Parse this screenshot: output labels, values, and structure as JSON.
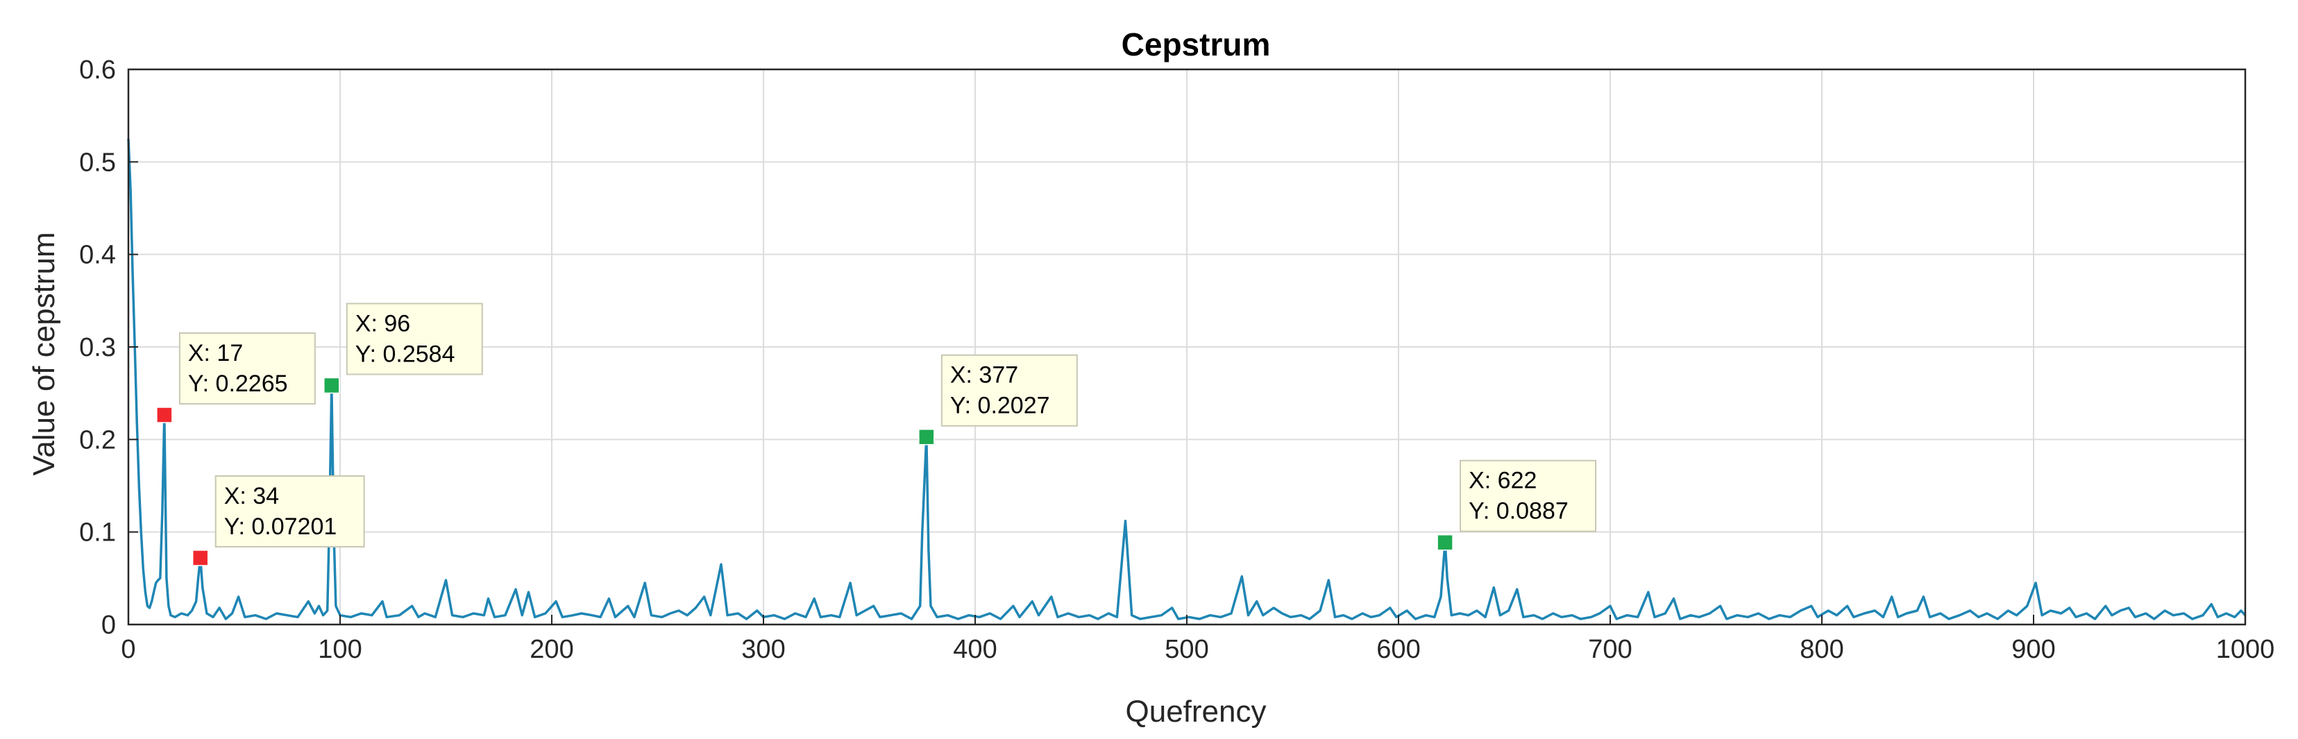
{
  "chart_data": {
    "type": "line",
    "title": "Cepstrum",
    "xlabel": "Quefrency",
    "ylabel": "Value of cepstrum",
    "xlim": [
      0,
      1000
    ],
    "ylim": [
      0,
      0.6
    ],
    "x_ticks": [
      0,
      100,
      200,
      300,
      400,
      500,
      600,
      700,
      800,
      900,
      1000
    ],
    "y_ticks": [
      0,
      0.1,
      0.2,
      0.3,
      0.4,
      0.5,
      0.6
    ],
    "grid": true,
    "colors": {
      "line": "#1f86b4",
      "marker_red": "#f0282d",
      "marker_green": "#1eaa50",
      "grid": "#dcdcdc",
      "axis": "#262626",
      "tip_bg": "#ffffe6",
      "tip_border": "#c8c8b4"
    },
    "series": [
      {
        "points": [
          [
            0,
            0.525
          ],
          [
            1,
            0.47
          ],
          [
            2,
            0.38
          ],
          [
            3,
            0.3
          ],
          [
            4,
            0.22
          ],
          [
            5,
            0.15
          ],
          [
            6,
            0.1
          ],
          [
            7,
            0.06
          ],
          [
            8,
            0.035
          ],
          [
            9,
            0.02
          ],
          [
            10,
            0.018
          ],
          [
            11,
            0.025
          ],
          [
            12,
            0.035
          ],
          [
            13,
            0.045
          ],
          [
            14,
            0.048
          ],
          [
            15,
            0.05
          ],
          [
            16,
            0.12
          ],
          [
            17,
            0.2265
          ],
          [
            18,
            0.05
          ],
          [
            19,
            0.02
          ],
          [
            20,
            0.01
          ],
          [
            22,
            0.008
          ],
          [
            25,
            0.012
          ],
          [
            28,
            0.01
          ],
          [
            30,
            0.015
          ],
          [
            32,
            0.025
          ],
          [
            33,
            0.05
          ],
          [
            34,
            0.07201
          ],
          [
            35,
            0.04
          ],
          [
            37,
            0.012
          ],
          [
            40,
            0.008
          ],
          [
            43,
            0.018
          ],
          [
            46,
            0.006
          ],
          [
            49,
            0.012
          ],
          [
            52,
            0.03
          ],
          [
            55,
            0.008
          ],
          [
            60,
            0.01
          ],
          [
            65,
            0.006
          ],
          [
            70,
            0.012
          ],
          [
            75,
            0.01
          ],
          [
            80,
            0.008
          ],
          [
            85,
            0.025
          ],
          [
            88,
            0.012
          ],
          [
            90,
            0.02
          ],
          [
            92,
            0.01
          ],
          [
            94,
            0.015
          ],
          [
            95,
            0.12
          ],
          [
            96,
            0.2584
          ],
          [
            97,
            0.1
          ],
          [
            98,
            0.02
          ],
          [
            100,
            0.01
          ],
          [
            105,
            0.008
          ],
          [
            110,
            0.012
          ],
          [
            115,
            0.01
          ],
          [
            120,
            0.025
          ],
          [
            122,
            0.008
          ],
          [
            128,
            0.01
          ],
          [
            134,
            0.02
          ],
          [
            137,
            0.008
          ],
          [
            140,
            0.012
          ],
          [
            145,
            0.008
          ],
          [
            150,
            0.048
          ],
          [
            153,
            0.01
          ],
          [
            158,
            0.008
          ],
          [
            163,
            0.012
          ],
          [
            168,
            0.01
          ],
          [
            170,
            0.028
          ],
          [
            173,
            0.008
          ],
          [
            178,
            0.01
          ],
          [
            183,
            0.038
          ],
          [
            186,
            0.01
          ],
          [
            189,
            0.035
          ],
          [
            192,
            0.008
          ],
          [
            197,
            0.012
          ],
          [
            202,
            0.025
          ],
          [
            205,
            0.008
          ],
          [
            210,
            0.01
          ],
          [
            214,
            0.012
          ],
          [
            219,
            0.01
          ],
          [
            223,
            0.008
          ],
          [
            227,
            0.028
          ],
          [
            230,
            0.008
          ],
          [
            236,
            0.02
          ],
          [
            239,
            0.008
          ],
          [
            244,
            0.045
          ],
          [
            247,
            0.01
          ],
          [
            252,
            0.008
          ],
          [
            256,
            0.012
          ],
          [
            260,
            0.015
          ],
          [
            264,
            0.01
          ],
          [
            268,
            0.018
          ],
          [
            272,
            0.03
          ],
          [
            275,
            0.01
          ],
          [
            280,
            0.065
          ],
          [
            283,
            0.01
          ],
          [
            288,
            0.012
          ],
          [
            292,
            0.006
          ],
          [
            297,
            0.015
          ],
          [
            300,
            0.008
          ],
          [
            305,
            0.01
          ],
          [
            310,
            0.006
          ],
          [
            315,
            0.012
          ],
          [
            320,
            0.008
          ],
          [
            324,
            0.028
          ],
          [
            327,
            0.008
          ],
          [
            332,
            0.01
          ],
          [
            336,
            0.008
          ],
          [
            341,
            0.045
          ],
          [
            344,
            0.01
          ],
          [
            348,
            0.015
          ],
          [
            352,
            0.02
          ],
          [
            355,
            0.008
          ],
          [
            360,
            0.01
          ],
          [
            365,
            0.012
          ],
          [
            370,
            0.006
          ],
          [
            374,
            0.02
          ],
          [
            375,
            0.1
          ],
          [
            377,
            0.2027
          ],
          [
            378,
            0.08
          ],
          [
            379,
            0.02
          ],
          [
            382,
            0.008
          ],
          [
            387,
            0.01
          ],
          [
            392,
            0.006
          ],
          [
            397,
            0.01
          ],
          [
            402,
            0.008
          ],
          [
            407,
            0.012
          ],
          [
            412,
            0.006
          ],
          [
            418,
            0.02
          ],
          [
            421,
            0.008
          ],
          [
            427,
            0.025
          ],
          [
            430,
            0.01
          ],
          [
            436,
            0.03
          ],
          [
            439,
            0.008
          ],
          [
            444,
            0.012
          ],
          [
            449,
            0.008
          ],
          [
            454,
            0.01
          ],
          [
            458,
            0.006
          ],
          [
            463,
            0.012
          ],
          [
            467,
            0.008
          ],
          [
            471,
            0.112
          ],
          [
            474,
            0.01
          ],
          [
            478,
            0.006
          ],
          [
            483,
            0.008
          ],
          [
            488,
            0.01
          ],
          [
            493,
            0.018
          ],
          [
            496,
            0.006
          ],
          [
            501,
            0.008
          ],
          [
            506,
            0.006
          ],
          [
            511,
            0.01
          ],
          [
            516,
            0.008
          ],
          [
            521,
            0.012
          ],
          [
            526,
            0.052
          ],
          [
            529,
            0.01
          ],
          [
            533,
            0.025
          ],
          [
            536,
            0.01
          ],
          [
            541,
            0.018
          ],
          [
            545,
            0.012
          ],
          [
            549,
            0.008
          ],
          [
            554,
            0.01
          ],
          [
            558,
            0.006
          ],
          [
            563,
            0.015
          ],
          [
            567,
            0.048
          ],
          [
            570,
            0.008
          ],
          [
            574,
            0.01
          ],
          [
            578,
            0.006
          ],
          [
            583,
            0.012
          ],
          [
            587,
            0.008
          ],
          [
            591,
            0.01
          ],
          [
            596,
            0.018
          ],
          [
            599,
            0.008
          ],
          [
            604,
            0.015
          ],
          [
            608,
            0.006
          ],
          [
            613,
            0.01
          ],
          [
            617,
            0.008
          ],
          [
            620,
            0.03
          ],
          [
            622,
            0.0887
          ],
          [
            623,
            0.05
          ],
          [
            625,
            0.01
          ],
          [
            629,
            0.012
          ],
          [
            633,
            0.01
          ],
          [
            637,
            0.015
          ],
          [
            641,
            0.008
          ],
          [
            645,
            0.04
          ],
          [
            648,
            0.01
          ],
          [
            652,
            0.015
          ],
          [
            656,
            0.038
          ],
          [
            659,
            0.008
          ],
          [
            664,
            0.01
          ],
          [
            668,
            0.006
          ],
          [
            673,
            0.012
          ],
          [
            677,
            0.008
          ],
          [
            682,
            0.01
          ],
          [
            686,
            0.006
          ],
          [
            691,
            0.008
          ],
          [
            695,
            0.012
          ],
          [
            700,
            0.02
          ],
          [
            703,
            0.006
          ],
          [
            708,
            0.01
          ],
          [
            713,
            0.008
          ],
          [
            718,
            0.035
          ],
          [
            721,
            0.008
          ],
          [
            726,
            0.012
          ],
          [
            730,
            0.028
          ],
          [
            733,
            0.006
          ],
          [
            738,
            0.01
          ],
          [
            742,
            0.008
          ],
          [
            747,
            0.012
          ],
          [
            752,
            0.02
          ],
          [
            755,
            0.006
          ],
          [
            760,
            0.01
          ],
          [
            765,
            0.008
          ],
          [
            770,
            0.012
          ],
          [
            775,
            0.006
          ],
          [
            780,
            0.01
          ],
          [
            785,
            0.008
          ],
          [
            790,
            0.015
          ],
          [
            795,
            0.02
          ],
          [
            798,
            0.008
          ],
          [
            803,
            0.015
          ],
          [
            807,
            0.01
          ],
          [
            812,
            0.02
          ],
          [
            815,
            0.008
          ],
          [
            820,
            0.012
          ],
          [
            825,
            0.015
          ],
          [
            829,
            0.008
          ],
          [
            833,
            0.03
          ],
          [
            836,
            0.008
          ],
          [
            840,
            0.012
          ],
          [
            845,
            0.015
          ],
          [
            848,
            0.03
          ],
          [
            851,
            0.008
          ],
          [
            856,
            0.012
          ],
          [
            860,
            0.006
          ],
          [
            865,
            0.01
          ],
          [
            870,
            0.015
          ],
          [
            874,
            0.008
          ],
          [
            878,
            0.012
          ],
          [
            883,
            0.006
          ],
          [
            888,
            0.015
          ],
          [
            892,
            0.01
          ],
          [
            897,
            0.02
          ],
          [
            901,
            0.045
          ],
          [
            904,
            0.01
          ],
          [
            908,
            0.015
          ],
          [
            913,
            0.012
          ],
          [
            917,
            0.018
          ],
          [
            920,
            0.008
          ],
          [
            925,
            0.012
          ],
          [
            929,
            0.006
          ],
          [
            934,
            0.02
          ],
          [
            937,
            0.01
          ],
          [
            941,
            0.015
          ],
          [
            945,
            0.018
          ],
          [
            948,
            0.008
          ],
          [
            953,
            0.012
          ],
          [
            957,
            0.006
          ],
          [
            962,
            0.015
          ],
          [
            966,
            0.01
          ],
          [
            971,
            0.012
          ],
          [
            975,
            0.006
          ],
          [
            980,
            0.01
          ],
          [
            984,
            0.022
          ],
          [
            987,
            0.008
          ],
          [
            991,
            0.012
          ],
          [
            995,
            0.008
          ],
          [
            998,
            0.015
          ],
          [
            1000,
            0.01
          ]
        ]
      }
    ],
    "markers": [
      {
        "x": 17,
        "y": 0.2265,
        "color": "red",
        "label_x": "X: 17",
        "label_y": "Y: 0.2265"
      },
      {
        "x": 34,
        "y": 0.07201,
        "color": "red",
        "label_x": "X: 34",
        "label_y": "Y: 0.07201"
      },
      {
        "x": 96,
        "y": 0.2584,
        "color": "green",
        "label_x": "X: 96",
        "label_y": "Y: 0.2584"
      },
      {
        "x": 377,
        "y": 0.2027,
        "color": "green",
        "label_x": "X: 377",
        "label_y": "Y: 0.2027"
      },
      {
        "x": 622,
        "y": 0.0887,
        "color": "green",
        "label_x": "X: 622",
        "label_y": "Y: 0.0887"
      }
    ]
  }
}
